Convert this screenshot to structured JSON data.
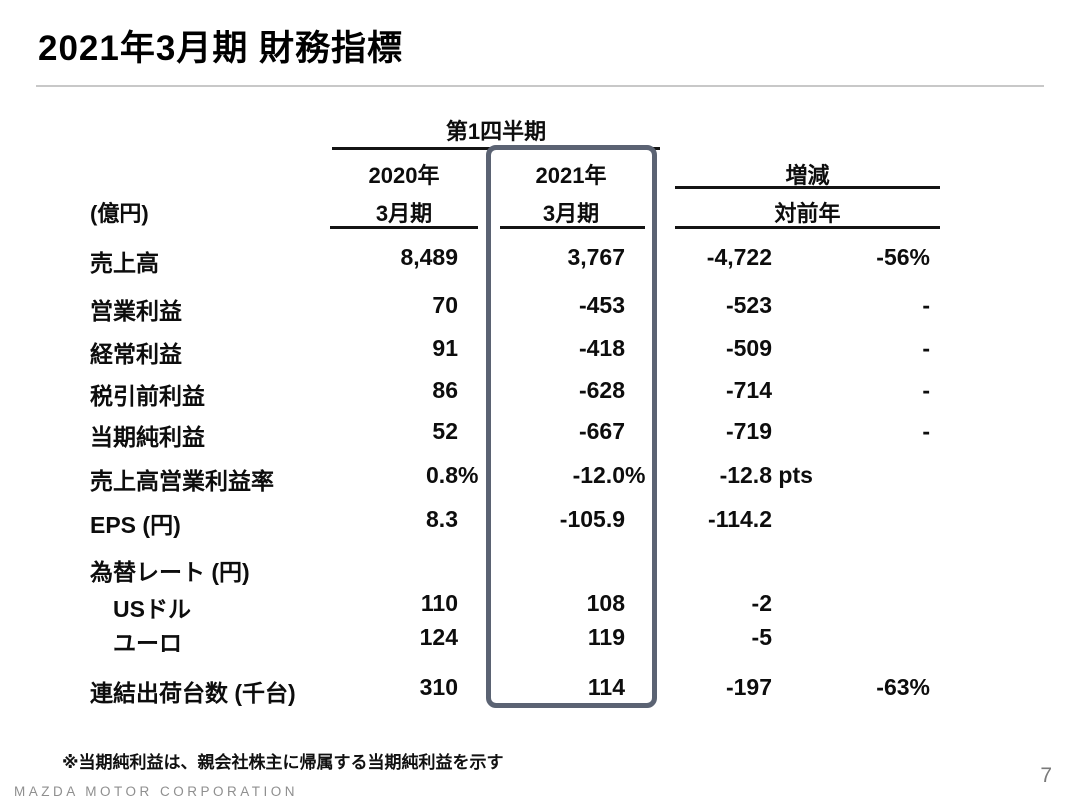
{
  "slide": {
    "title": "2021年3月期 財務指標",
    "footnote": "※当期純利益は、親会社株主に帰属する当期純利益を示す",
    "footer_brand": "MAZDA MOTOR CORPORATION",
    "page_number": "7",
    "highlight_border_color": "#5b6373",
    "text_color": "#0d0d0d",
    "divider_color": "#c8c8c8"
  },
  "table": {
    "unit_label": "(億円)",
    "quarter_header": "第1四半期",
    "columns": {
      "y2020": {
        "line1": "2020年",
        "line2": "3月期"
      },
      "y2021": {
        "line1": "2021年",
        "line2": "3月期"
      },
      "change": {
        "line1": "増減",
        "line2": "対前年"
      }
    },
    "rows": [
      {
        "label": "売上高",
        "y2020": {
          "value": "8,489"
        },
        "y2021": {
          "value": "3,767"
        },
        "change": {
          "value": "-4,722"
        },
        "pct": {
          "value": "-56%"
        }
      },
      {
        "label": "営業利益",
        "y2020": {
          "value": "70"
        },
        "y2021": {
          "value": "-453"
        },
        "change": {
          "value": "-523"
        },
        "pct": {
          "value": "-"
        }
      },
      {
        "label": "経常利益",
        "y2020": {
          "value": "91"
        },
        "y2021": {
          "value": "-418"
        },
        "change": {
          "value": "-509"
        },
        "pct": {
          "value": "-"
        }
      },
      {
        "label": "税引前利益",
        "y2020": {
          "value": "86"
        },
        "y2021": {
          "value": "-628"
        },
        "change": {
          "value": "-714"
        },
        "pct": {
          "value": "-"
        }
      },
      {
        "label": "当期純利益",
        "y2020": {
          "value": "52"
        },
        "y2021": {
          "value": "-667"
        },
        "change": {
          "value": "-719"
        },
        "pct": {
          "value": "-"
        }
      },
      {
        "label": "売上高営業利益率",
        "y2020": {
          "value": "0.8",
          "suffix": "%"
        },
        "y2021": {
          "value": "-12.0",
          "suffix": "%"
        },
        "change": {
          "value": "-12.8",
          "suffix": " pts"
        },
        "pct": {}
      },
      {
        "label": "EPS (円)",
        "y2020": {
          "value": "8.3"
        },
        "y2021": {
          "value": "-105.9"
        },
        "change": {
          "value": "-114.2"
        },
        "pct": {}
      },
      {
        "label": "為替レート (円)",
        "y2020": {},
        "y2021": {},
        "change": {},
        "pct": {}
      },
      {
        "label": "USドル",
        "y2020": {
          "value": "110"
        },
        "y2021": {
          "value": "108"
        },
        "change": {
          "value": "-2"
        },
        "pct": {}
      },
      {
        "label": "ユーロ",
        "y2020": {
          "value": "124"
        },
        "y2021": {
          "value": "119"
        },
        "change": {
          "value": "-5"
        },
        "pct": {}
      },
      {
        "label": "連結出荷台数 (千台)",
        "y2020": {
          "value": "310"
        },
        "y2021": {
          "value": "114"
        },
        "change": {
          "value": "-197"
        },
        "pct": {
          "value": "-63%"
        }
      }
    ]
  }
}
